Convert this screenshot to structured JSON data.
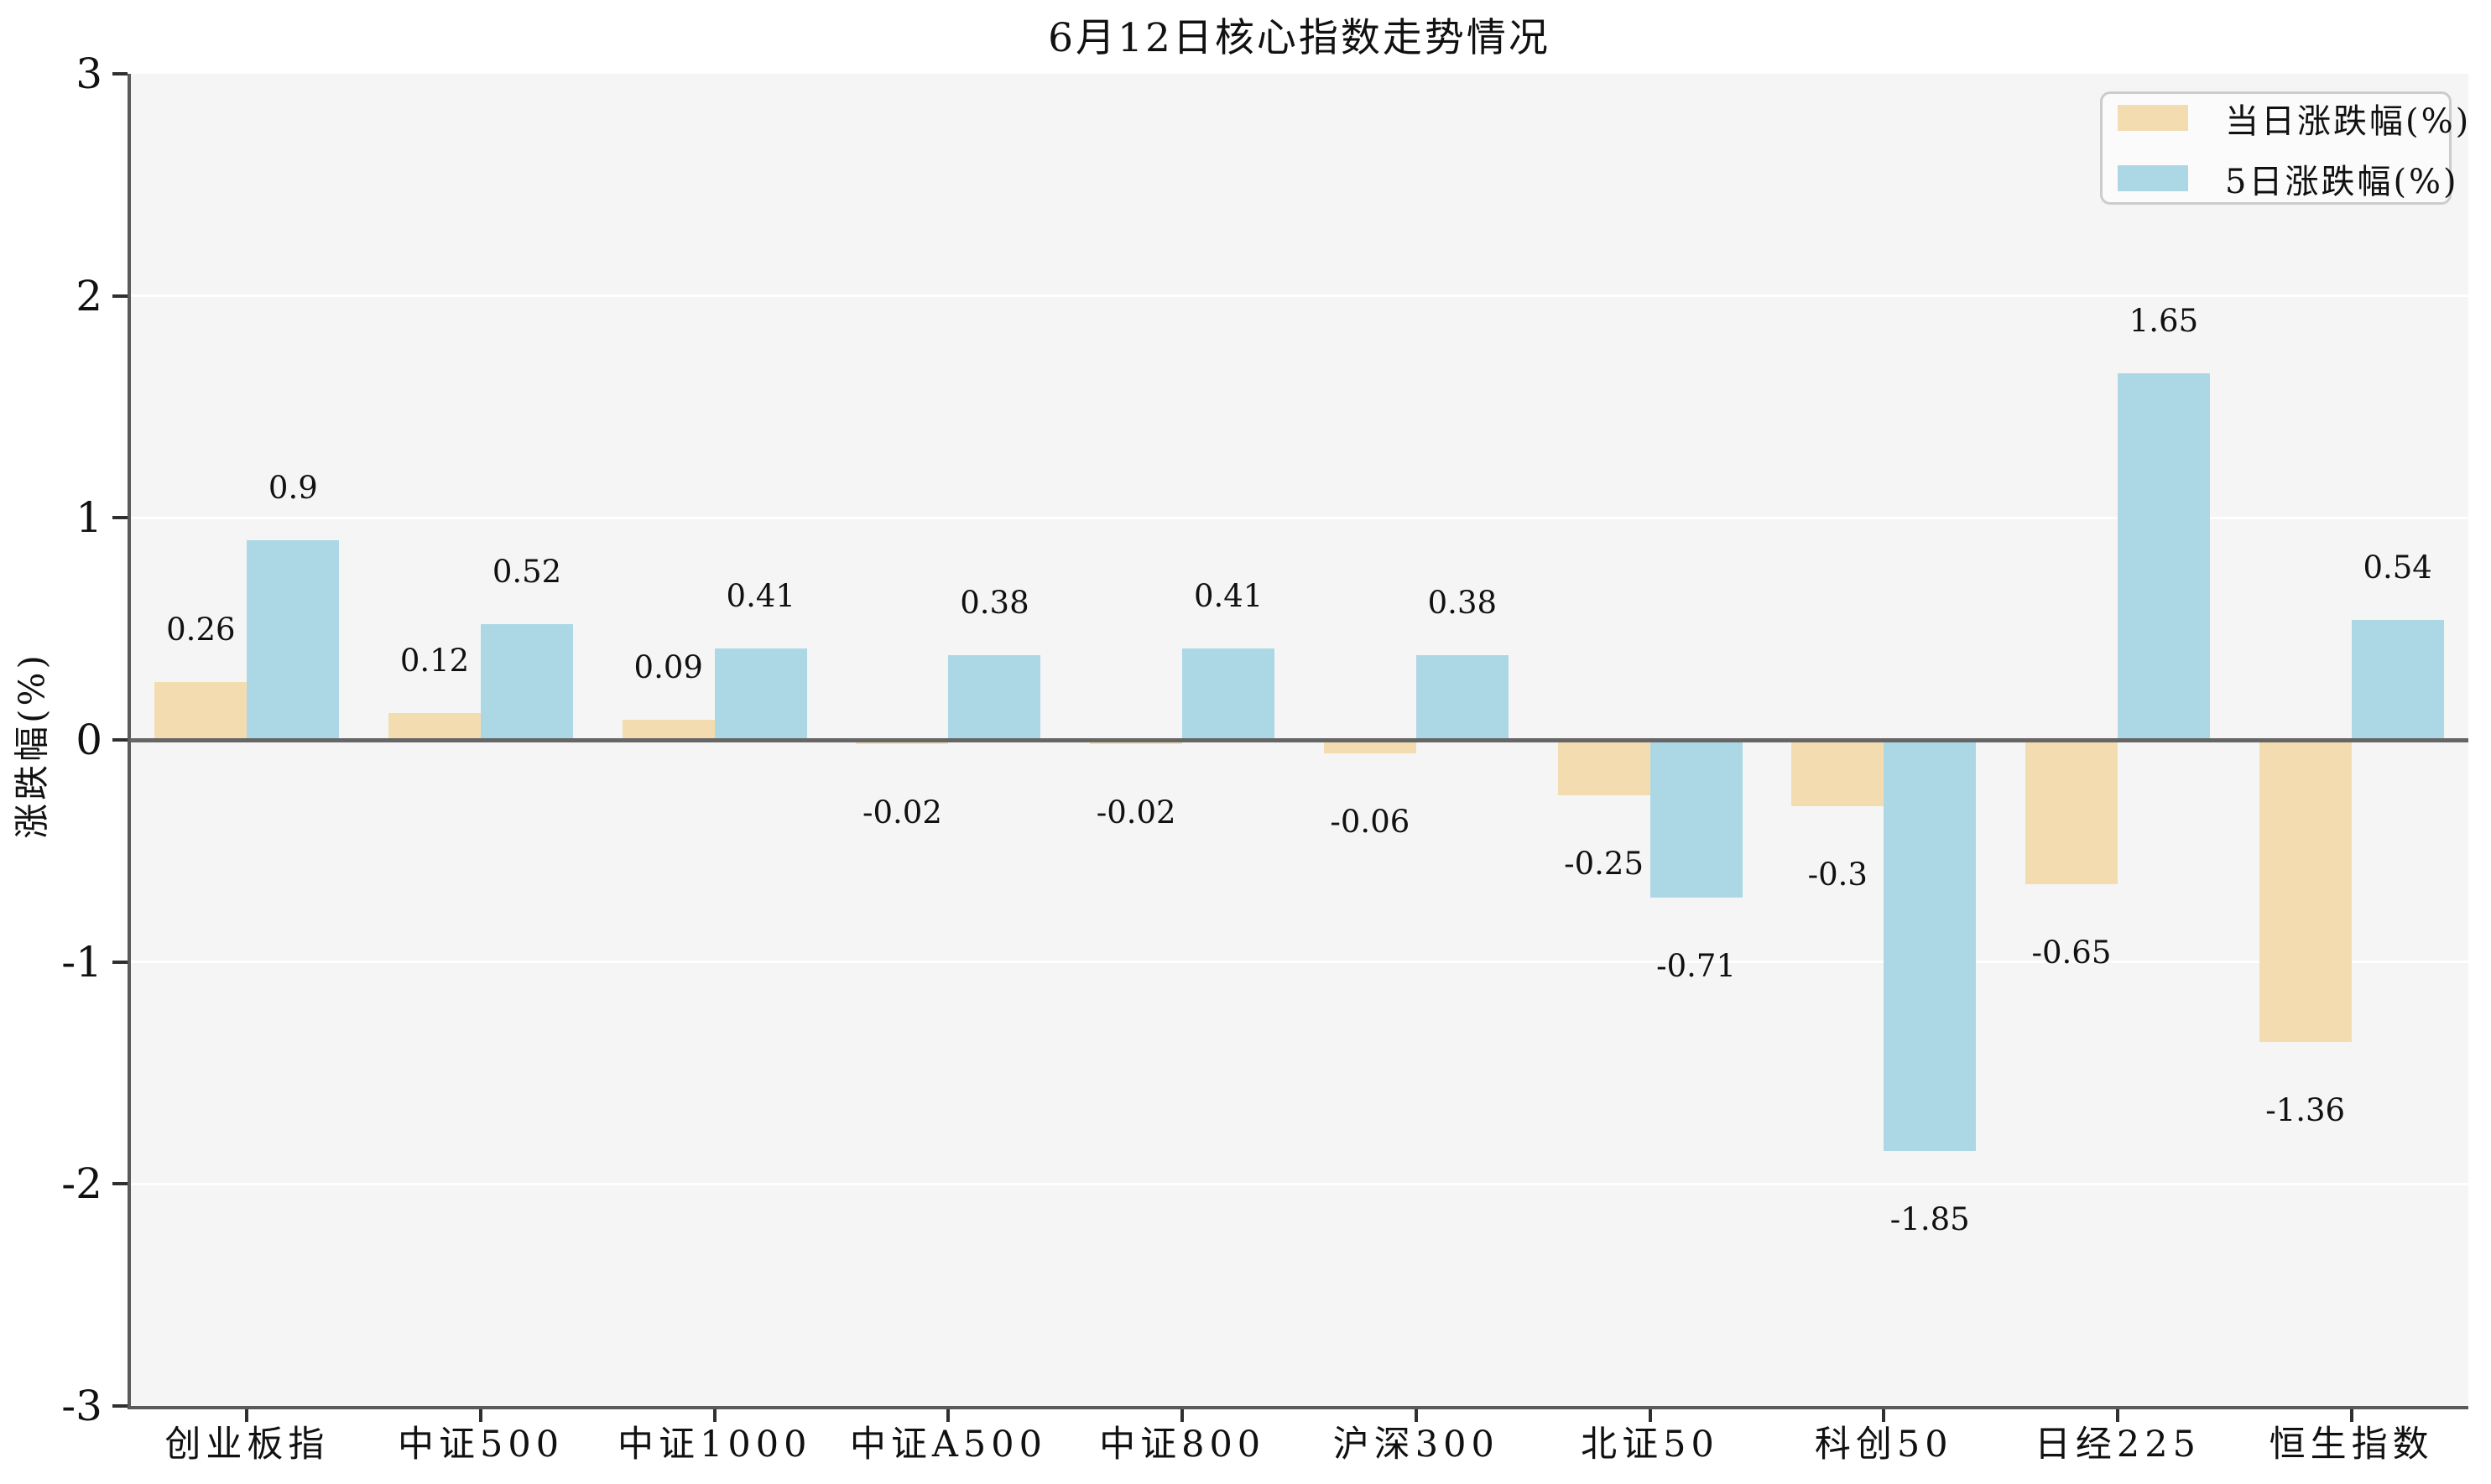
{
  "chart_data": {
    "type": "bar",
    "title": "6月12日核心指数走势情况",
    "ylabel": "涨跌幅(%)",
    "categories": [
      "创业板指",
      "中证500",
      "中证1000",
      "中证A500",
      "中证800",
      "沪深300",
      "北证50",
      "科创50",
      "日经225",
      "恒生指数"
    ],
    "series": [
      {
        "name": "当日涨跌幅(%)",
        "color": "#f3ddb0",
        "values": [
          0.26,
          0.12,
          0.09,
          -0.02,
          -0.02,
          -0.06,
          -0.25,
          -0.3,
          -0.65,
          -1.36
        ],
        "labels": [
          "0.26",
          "0.12",
          "0.09",
          "-0.02",
          "-0.02",
          "-0.06",
          "-0.25",
          "-0.3",
          "-0.65",
          "-1.36"
        ]
      },
      {
        "name": "5日涨跌幅(%)",
        "color": "#acd8e5",
        "values": [
          0.9,
          0.52,
          0.41,
          0.38,
          0.41,
          0.38,
          -0.71,
          -1.85,
          1.65,
          0.54
        ],
        "labels": [
          "0.9",
          "0.52",
          "0.41",
          "0.38",
          "0.41",
          "0.38",
          "-0.71",
          "-1.85",
          "1.65",
          "0.54"
        ]
      }
    ],
    "ylim": [
      -3,
      3
    ],
    "yticks": [
      3,
      2,
      1,
      0,
      -1,
      -2,
      -3
    ],
    "ytick_labels": [
      "3",
      "2",
      "1",
      "0",
      "-1",
      "-2",
      "-3"
    ],
    "grid": true,
    "legend_position": "upper right"
  },
  "colors": {
    "plot_background": "#f5f5f5",
    "gridline": "#ffffff",
    "axis_line": "#5a5a5a",
    "zero_line": "#666666",
    "text": "#111111"
  }
}
